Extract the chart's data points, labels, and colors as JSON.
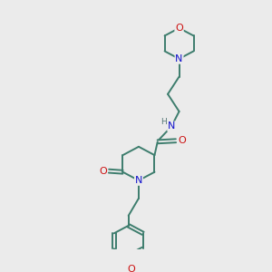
{
  "bg_color": "#ebebeb",
  "bond_color": "#3d7d6d",
  "N_color": "#1111cc",
  "O_color": "#cc1111",
  "H_color": "#557777",
  "font_size": 8.0,
  "line_width": 1.4,
  "figsize": [
    3.0,
    3.0
  ],
  "dpi": 100,
  "xlim": [
    0,
    10
  ],
  "ylim": [
    0,
    10
  ]
}
